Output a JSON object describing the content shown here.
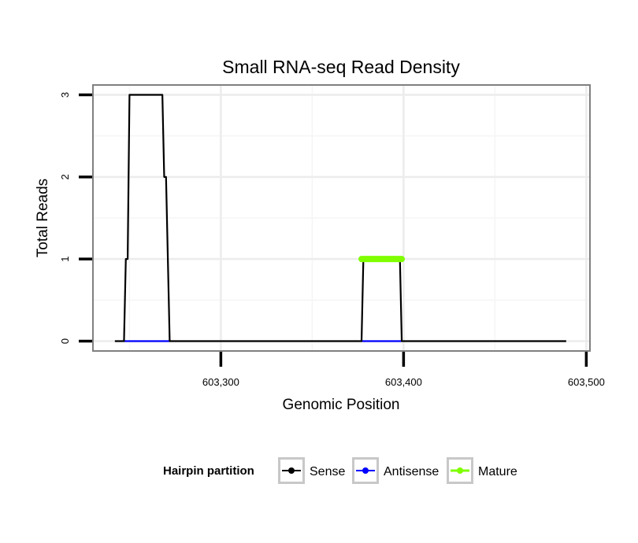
{
  "chart_data": {
    "type": "line",
    "title": "Small RNA-seq Read Density",
    "xlabel": "Genomic Position",
    "ylabel": "Total Reads",
    "xlim": [
      603230,
      603502
    ],
    "ylim": [
      -0.12,
      3.12
    ],
    "x_ticks": [
      603300,
      603400,
      603500
    ],
    "x_tick_labels": [
      "603,300",
      "603,400",
      "603,500"
    ],
    "y_ticks": [
      0,
      1,
      2,
      3
    ],
    "y_tick_labels": [
      "0",
      "1",
      "2",
      "3"
    ],
    "grid": true,
    "legend_position": "bottom",
    "legend_title": "Hairpin partition",
    "series": [
      {
        "name": "Sense",
        "color": "#000000",
        "x": [
          603242,
          603247,
          603248,
          603249,
          603250,
          603268,
          603269,
          603270,
          603272,
          603377,
          603378,
          603398,
          603399,
          603489
        ],
        "y": [
          0,
          0,
          1,
          1,
          3,
          3,
          2,
          2,
          0,
          0,
          1,
          1,
          0,
          0
        ]
      },
      {
        "name": "Antisense",
        "color": "#0000ff",
        "x": [
          603247,
          603272,
          603272,
          603377,
          603377,
          603399
        ],
        "y": [
          0,
          0,
          null,
          null,
          0,
          0
        ]
      },
      {
        "name": "Mature",
        "color": "#7fff00",
        "x": [
          603377,
          603399
        ],
        "y": [
          1,
          1
        ]
      }
    ]
  }
}
